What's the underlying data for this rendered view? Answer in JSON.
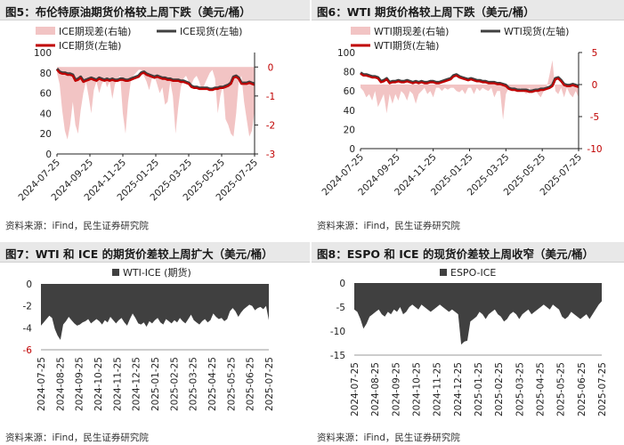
{
  "panels": {
    "fig5": {
      "title": "图5：布伦特原油期货价格较上周下跌（美元/桶）",
      "source": "资料来源：iFind，民生证券研究院"
    },
    "fig6": {
      "title": "图6：WTI 期货价格较上周下跌（美元/桶）",
      "source": "资料来源：iFind，民生证券研究院"
    },
    "fig7": {
      "title": "图7：WTI 和 ICE 的期货价差较上周扩大（美元/桶）",
      "source": "资料来源：iFind，民生证券研究院"
    },
    "fig8": {
      "title": "图8：ESPO 和 ICE 的现货价差较上周收窄（美元/桶）",
      "source": "资料来源：iFind，民生证券研究院"
    }
  },
  "chart_data": [
    {
      "id": "fig5",
      "type": "line",
      "title": "图5：布伦特原油期货价格较上周下跌（美元/桶）",
      "x_ticks": [
        "2024-07-25",
        "2024-09-25",
        "2024-11-25",
        "2025-01-25",
        "2025-03-25",
        "2025-05-25",
        "2025-07-25"
      ],
      "ylim_left": [
        0,
        100
      ],
      "yticks_left": [
        0,
        20,
        40,
        60,
        80,
        100
      ],
      "ylim_right": [
        -3,
        0.5
      ],
      "yticks_right": [
        0,
        -1,
        -2,
        -3
      ],
      "legend": [
        "ICE期现差(右轴)",
        "ICE现货(左轴)",
        "ICE期货(左轴)"
      ],
      "colors": {
        "spread": "#f2c4c4",
        "spot": "#404040",
        "futures": "#c00000"
      },
      "series": [
        {
          "name": "ICE期现差(右轴)",
          "axis": "right",
          "kind": "area",
          "values": [
            -0.2,
            -0.6,
            -1.5,
            -2.2,
            -2.5,
            -2.0,
            -1.2,
            -2.0,
            -2.3,
            -1.5,
            -0.9,
            -0.5,
            -1.0,
            -1.6,
            -0.8,
            -0.5,
            -0.9,
            -0.6,
            -0.4,
            -0.7,
            -0.5,
            -1.1,
            -0.6,
            -0.4,
            -0.3,
            -1.6,
            -2.3,
            -1.2,
            -0.5,
            -0.3,
            -0.2,
            -0.1,
            -0.1,
            -0.3,
            -0.5,
            -0.8,
            -0.4,
            -0.3,
            -0.6,
            -0.9,
            -0.7,
            -1.3,
            -1.2,
            -0.5,
            -1.0,
            -2.3,
            -1.4,
            -0.7,
            -0.4,
            -0.3,
            -0.5,
            -0.6,
            -0.4,
            -0.3,
            -0.5,
            -0.8,
            -0.6,
            -0.4,
            -0.2,
            -0.1,
            -0.4,
            -1.6,
            -1.0,
            -0.6,
            -1.8,
            -2.0,
            -2.3,
            -2.4,
            -1.6,
            -0.5,
            -0.3,
            -1.2,
            -1.8,
            -2.4,
            -2.2,
            -1.5
          ]
        },
        {
          "name": "ICE现货(左轴)",
          "axis": "left",
          "kind": "line",
          "values": [
            84,
            81,
            80,
            80,
            79,
            79,
            78,
            73,
            74,
            76,
            72,
            73,
            74,
            75,
            74,
            73,
            75,
            74,
            73,
            74,
            73,
            74,
            73,
            73,
            74,
            74,
            73,
            73,
            74,
            75,
            76,
            77,
            80,
            81,
            79,
            78,
            77,
            76,
            77,
            76,
            75,
            75,
            74,
            74,
            73,
            73,
            73,
            72,
            72,
            71,
            70,
            67,
            66,
            66,
            65,
            65,
            65,
            65,
            64,
            64,
            65,
            65,
            66,
            66,
            67,
            68,
            70,
            76,
            77,
            75,
            70,
            70,
            70,
            71,
            70,
            69
          ]
        },
        {
          "name": "ICE期货(左轴)",
          "axis": "left",
          "kind": "line",
          "values": [
            83,
            80,
            79,
            79,
            78,
            78,
            77,
            72,
            73,
            75,
            71,
            72,
            73,
            74,
            73,
            72,
            74,
            73,
            72,
            73,
            72,
            73,
            72,
            72,
            73,
            73,
            72,
            72,
            73,
            74,
            75,
            76,
            79,
            80,
            78,
            77,
            76,
            75,
            76,
            75,
            74,
            74,
            73,
            73,
            72,
            72,
            72,
            71,
            71,
            70,
            69,
            66,
            65,
            65,
            64,
            64,
            64,
            64,
            63,
            63,
            64,
            64,
            65,
            65,
            66,
            67,
            69,
            75,
            76,
            74,
            69,
            69,
            69,
            70,
            69,
            68
          ]
        }
      ]
    },
    {
      "id": "fig6",
      "type": "line",
      "title": "图6：WTI 期货价格较上周下跌（美元/桶）",
      "x_ticks": [
        "2024-07-25",
        "2024-09-25",
        "2024-11-25",
        "2025-01-25",
        "2025-03-25",
        "2025-05-25",
        "2025-07-25"
      ],
      "ylim_left": [
        0,
        100
      ],
      "yticks_left": [
        0,
        20,
        40,
        60,
        80,
        100
      ],
      "ylim_right": [
        -10,
        5
      ],
      "yticks_right": [
        5,
        0,
        -5,
        -10
      ],
      "legend": [
        "WTI期现差(右轴)",
        "WTI现货(左轴)",
        "WTI期货(左轴)"
      ],
      "colors": {
        "spread": "#f2c4c4",
        "spot": "#404040",
        "futures": "#c00000"
      },
      "series": [
        {
          "name": "WTI期现差(右轴)",
          "axis": "right",
          "kind": "area",
          "values": [
            -0.5,
            -1.0,
            -2.0,
            -1.5,
            -2.5,
            -1.0,
            -3.5,
            -2.5,
            -1.5,
            -4.5,
            -1.5,
            -3.0,
            -1.5,
            -2.5,
            -1.0,
            -1.5,
            -2.5,
            -1.0,
            -1.5,
            -3.0,
            -1.5,
            -1.0,
            -0.5,
            -1.5,
            -1.0,
            -2.0,
            -0.5,
            -0.5,
            -1.0,
            -0.5,
            -0.8,
            -0.5,
            -0.5,
            -1.0,
            -1.2,
            -0.8,
            -1.5,
            -0.5,
            -0.5,
            -1.5,
            -0.5,
            -1.0,
            -0.5,
            -0.8,
            -1.0,
            -0.5,
            -2.0,
            -1.0,
            -1.0,
            -5.5,
            -1.5,
            -0.5,
            -1.0,
            -0.5,
            -1.0,
            -0.5,
            -1.0,
            -1.5,
            -0.5,
            -1.0,
            -0.5,
            -1.5,
            -2.0,
            -1.0,
            -0.5,
            1.5,
            3.8,
            -1.0,
            -1.5,
            -0.5,
            -2.0,
            -0.5,
            -1.5,
            -2.0,
            -1.0,
            -2.0
          ]
        },
        {
          "name": "WTI现货(左轴)",
          "axis": "left",
          "kind": "line",
          "values": [
            79,
            77,
            77,
            76,
            75,
            75,
            74,
            70,
            71,
            73,
            69,
            70,
            70,
            71,
            70,
            70,
            71,
            70,
            69,
            70,
            69,
            70,
            69,
            69,
            70,
            70,
            69,
            69,
            70,
            71,
            72,
            73,
            76,
            77,
            75,
            74,
            73,
            72,
            73,
            72,
            71,
            71,
            70,
            70,
            69,
            69,
            69,
            68,
            68,
            67,
            66,
            63,
            62,
            62,
            61,
            61,
            61,
            61,
            60,
            60,
            61,
            61,
            62,
            62,
            63,
            64,
            66,
            73,
            74,
            71,
            67,
            66,
            66,
            67,
            66,
            65
          ]
        },
        {
          "name": "WTI期货(左轴)",
          "axis": "left",
          "kind": "line",
          "values": [
            78,
            76,
            76,
            75,
            74,
            74,
            73,
            69,
            70,
            72,
            68,
            69,
            69,
            70,
            69,
            69,
            70,
            69,
            68,
            69,
            68,
            69,
            68,
            68,
            69,
            69,
            68,
            68,
            69,
            70,
            71,
            72,
            75,
            76,
            74,
            73,
            72,
            71,
            72,
            71,
            70,
            70,
            69,
            69,
            68,
            68,
            68,
            67,
            67,
            66,
            65,
            62,
            61,
            61,
            60,
            60,
            60,
            60,
            59,
            59,
            60,
            60,
            61,
            61,
            62,
            63,
            65,
            72,
            73,
            70,
            66,
            65,
            65,
            66,
            65,
            64
          ]
        }
      ]
    },
    {
      "id": "fig7",
      "type": "area",
      "title": "图7：WTI 和 ICE 的期货价差较上周扩大（美元/桶）",
      "x_ticks": [
        "2024-07-25",
        "2024-08-25",
        "2024-09-25",
        "2024-10-25",
        "2024-11-25",
        "2024-12-25",
        "2025-01-25",
        "2025-02-25",
        "2025-03-25",
        "2025-04-25",
        "2025-05-25",
        "2025-06-25",
        "2025-07-25"
      ],
      "ylim": [
        -6,
        0
      ],
      "yticks": [
        0,
        -2,
        -4,
        -6
      ],
      "legend": [
        "WTI-ICE (期货)"
      ],
      "colors": {
        "series": "#404040"
      },
      "series": [
        {
          "name": "WTI-ICE (期货)",
          "values": [
            -3.8,
            -3.5,
            -3.2,
            -2.9,
            -3.1,
            -4.1,
            -4.7,
            -5.1,
            -3.7,
            -3.4,
            -3.0,
            -3.3,
            -3.6,
            -3.8,
            -3.7,
            -3.5,
            -3.4,
            -3.2,
            -3.6,
            -3.4,
            -3.2,
            -3.4,
            -3.7,
            -3.3,
            -3.5,
            -3.0,
            -3.3,
            -3.6,
            -3.3,
            -3.1,
            -3.5,
            -3.8,
            -3.2,
            -2.7,
            -3.1,
            -3.6,
            -3.7,
            -3.5,
            -3.9,
            -3.4,
            -3.6,
            -3.3,
            -3.1,
            -3.5,
            -3.7,
            -3.2,
            -3.4,
            -3.6,
            -3.3,
            -3.5,
            -3.1,
            -3.4,
            -3.6,
            -3.2,
            -2.8,
            -3.3,
            -3.5,
            -3.7,
            -3.4,
            -3.2,
            -3.5,
            -3.3,
            -2.7,
            -3.0,
            -3.2,
            -3.1,
            -3.4,
            -3.2,
            -2.5,
            -2.2,
            -2.5,
            -3.0,
            -2.6,
            -2.3,
            -2.1,
            -1.9,
            -2.0,
            -2.4,
            -2.2,
            -2.1,
            -2.3,
            -2.0,
            -3.3
          ]
        }
      ]
    },
    {
      "id": "fig8",
      "type": "area",
      "title": "图8：ESPO 和 ICE 的现货价差较上周收窄（美元/桶）",
      "x_ticks": [
        "2024-07-25",
        "2024-08-25",
        "2024-09-25",
        "2024-10-25",
        "2024-11-25",
        "2024-12-25",
        "2025-01-25",
        "2025-02-25",
        "2025-03-25",
        "2025-04-25",
        "2025-05-25",
        "2025-06-25",
        "2025-07-25"
      ],
      "ylim": [
        -15,
        0
      ],
      "yticks": [
        0,
        -5,
        -10,
        -15
      ],
      "legend": [
        "ESPO-ICE"
      ],
      "colors": {
        "series": "#404040"
      },
      "series": [
        {
          "name": "ESPO-ICE",
          "values": [
            -5.5,
            -6.0,
            -7.5,
            -9.5,
            -8.5,
            -7.0,
            -6.5,
            -6.0,
            -5.5,
            -6.5,
            -7.0,
            -6.0,
            -6.5,
            -5.5,
            -6.0,
            -5.0,
            -6.5,
            -6.0,
            -5.0,
            -4.5,
            -5.0,
            -5.5,
            -4.5,
            -5.0,
            -5.5,
            -6.0,
            -5.5,
            -5.0,
            -4.5,
            -5.0,
            -5.5,
            -6.0,
            -5.5,
            -6.0,
            -6.5,
            -12.8,
            -12.2,
            -12.0,
            -8.0,
            -7.5,
            -7.0,
            -6.0,
            -6.5,
            -7.5,
            -6.5,
            -6.0,
            -5.5,
            -6.5,
            -7.0,
            -8.0,
            -7.5,
            -6.5,
            -6.0,
            -6.5,
            -7.5,
            -6.5,
            -6.0,
            -5.5,
            -6.5,
            -6.0,
            -5.5,
            -5.0,
            -4.5,
            -5.0,
            -5.5,
            -4.5,
            -5.0,
            -5.5,
            -7.0,
            -7.5,
            -7.0,
            -6.0,
            -6.5,
            -7.0,
            -7.5,
            -7.0,
            -6.5,
            -7.5,
            -6.5,
            -5.5,
            -4.5,
            -3.8
          ]
        }
      ]
    }
  ]
}
